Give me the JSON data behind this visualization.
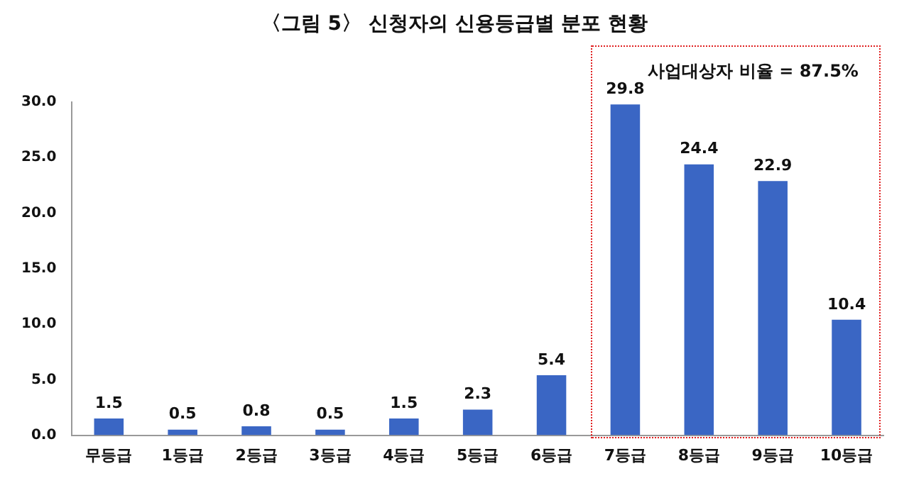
{
  "chart_data": {
    "type": "bar",
    "title": "〈그림 5〉 신청자의 신용등급별 분포 현황",
    "categories": [
      "무등급",
      "1등급",
      "2등급",
      "3등급",
      "4등급",
      "5등급",
      "6등급",
      "7등급",
      "8등급",
      "9등급",
      "10등급"
    ],
    "values": [
      1.5,
      0.5,
      0.8,
      0.5,
      1.5,
      2.3,
      5.4,
      29.8,
      24.4,
      22.9,
      10.4
    ],
    "color": "#3a66c4",
    "ylim": [
      0,
      30
    ],
    "yticks": [
      {
        "value": 0,
        "label": "0.0"
      },
      {
        "value": 5,
        "label": "5.0"
      },
      {
        "value": 10,
        "label": "10.0"
      },
      {
        "value": 15,
        "label": "15.0"
      },
      {
        "value": 20,
        "label": "20.0"
      },
      {
        "value": 25,
        "label": "25.0"
      },
      {
        "value": 30,
        "label": "30.0"
      }
    ],
    "grid": false,
    "data_labels": true,
    "annotations": [
      "사업대상자 비율 = 87.5%"
    ]
  }
}
